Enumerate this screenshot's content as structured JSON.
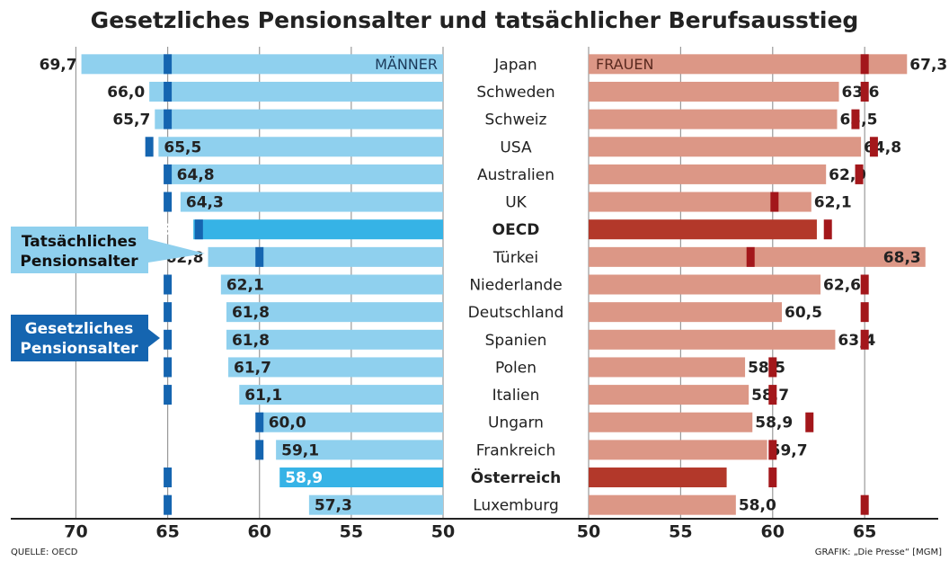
{
  "chart_data": {
    "type": "butterfly",
    "title": "Gesetzliches Pensionsalter und tatsächlicher Berufsausstieg",
    "categories": [
      "Japan",
      "Schweden",
      "Schweiz",
      "USA",
      "Australien",
      "UK",
      "OECD",
      "Türkei",
      "Niederlande",
      "Deutschland",
      "Spanien",
      "Polen",
      "Italien",
      "Ungarn",
      "Frankreich",
      "Österreich",
      "Luxemburg"
    ],
    "legend": {
      "actual": "Tatsächliches Pensionsalter",
      "legal": "Gesetzliches Pensionsalter"
    },
    "panels": [
      {
        "name": "MÄNNER",
        "xlim": [
          73.4,
          50
        ],
        "xticks": [
          70,
          65,
          60,
          55,
          50
        ],
        "actual": {
          "color": "#8fd0ee",
          "values": [
            69.7,
            66.0,
            65.7,
            65.5,
            64.8,
            64.3,
            63.6,
            62.8,
            62.1,
            61.8,
            61.8,
            61.7,
            61.1,
            60.0,
            59.1,
            58.9,
            57.3
          ],
          "value_labels": [
            "69,7",
            "66,0",
            "65,7",
            "65,5",
            "64,8",
            "64,3",
            "63,6",
            "62,8",
            "62,1",
            "61,8",
            "61,8",
            "61,7",
            "61,1",
            "60,0",
            "59,1",
            "58,9",
            "57,3"
          ],
          "colors": [
            "#8fd0ee",
            "#8fd0ee",
            "#8fd0ee",
            "#8fd0ee",
            "#8fd0ee",
            "#8fd0ee",
            "#36b3e6",
            "#8fd0ee",
            "#8fd0ee",
            "#8fd0ee",
            "#8fd0ee",
            "#8fd0ee",
            "#8fd0ee",
            "#8fd0ee",
            "#8fd0ee",
            "#36b3e6",
            "#8fd0ee"
          ]
        },
        "legal": {
          "color": "#1565b0",
          "values": [
            65,
            65,
            65,
            66,
            65,
            65,
            63.3,
            60,
            65,
            65,
            65,
            65,
            65,
            60,
            60,
            65,
            65
          ]
        }
      },
      {
        "name": "FRAUEN",
        "xlim": [
          50,
          68.8
        ],
        "xticks": [
          50,
          55,
          60,
          65
        ],
        "actual": {
          "color": "#dc9786",
          "values": [
            67.3,
            63.6,
            63.5,
            64.8,
            62.9,
            62.1,
            62.4,
            68.3,
            62.6,
            60.5,
            63.4,
            58.5,
            58.7,
            58.9,
            59.7,
            57.5,
            58.0
          ],
          "value_labels": [
            "67,3",
            "63,6",
            "63,5",
            "64,8",
            "62,9",
            "62,1",
            "62,4",
            "68,3",
            "62,6",
            "60,5",
            "63,4",
            "58,5",
            "58,7",
            "58,9",
            "59,7",
            "57,5",
            "58,0"
          ],
          "colors": [
            "#dc9786",
            "#dc9786",
            "#dc9786",
            "#dc9786",
            "#dc9786",
            "#dc9786",
            "#b3382a",
            "#dc9786",
            "#dc9786",
            "#dc9786",
            "#dc9786",
            "#dc9786",
            "#dc9786",
            "#dc9786",
            "#dc9786",
            "#b3382a",
            "#dc9786"
          ]
        },
        "legal": {
          "color": "#a3171b",
          "values": [
            65,
            65,
            64.5,
            65.5,
            64.7,
            60.1,
            63,
            58.8,
            65,
            65,
            65,
            60,
            60,
            62,
            60,
            60,
            65
          ]
        }
      }
    ],
    "source": "QUELLE: OECD",
    "credit": "GRAFIK: „Die Presse“ [MGM]"
  }
}
